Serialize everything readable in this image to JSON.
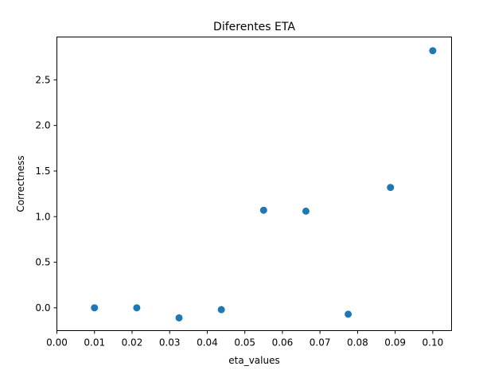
{
  "chart_data": {
    "type": "scatter",
    "title": "Diferentes ETA",
    "xlabel": "eta_values",
    "ylabel": "Correctness",
    "xlim": [
      0.0,
      0.105
    ],
    "ylim": [
      -0.25,
      2.97
    ],
    "xticks": [
      0.0,
      0.01,
      0.02,
      0.03,
      0.04,
      0.05,
      0.06,
      0.07,
      0.08,
      0.09,
      0.1
    ],
    "xtick_labels": [
      "0.00",
      "0.01",
      "0.02",
      "0.03",
      "0.04",
      "0.05",
      "0.06",
      "0.07",
      "0.08",
      "0.09",
      "0.10"
    ],
    "yticks": [
      0.0,
      0.5,
      1.0,
      1.5,
      2.0,
      2.5
    ],
    "ytick_labels": [
      "0.0",
      "0.5",
      "1.0",
      "1.5",
      "2.0",
      "2.5"
    ],
    "grid": false,
    "marker_color": "#1f77b4",
    "series": [
      {
        "x": [
          0.01,
          0.02125,
          0.0325,
          0.04375,
          0.055,
          0.06625,
          0.0775,
          0.08875,
          0.1
        ],
        "y": [
          0.0,
          0.0,
          -0.11,
          -0.02,
          1.07,
          1.06,
          -0.07,
          1.32,
          2.82
        ]
      }
    ]
  }
}
